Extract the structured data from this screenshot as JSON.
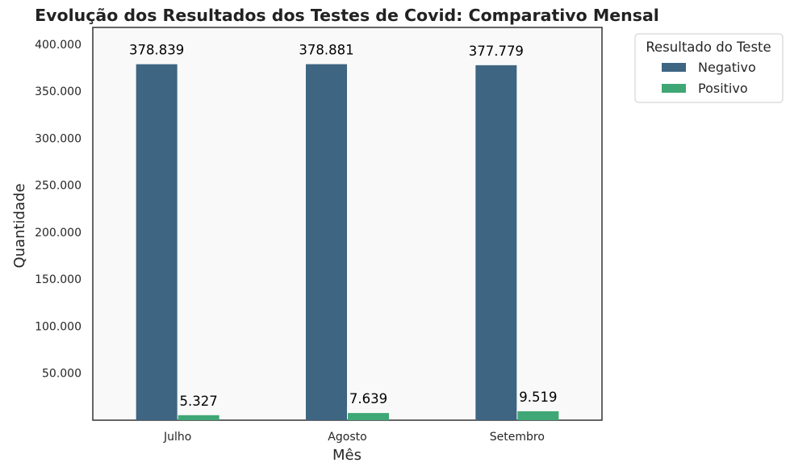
{
  "chart_data": {
    "type": "bar",
    "title": "Evolução dos Resultados dos Testes de Covid: Comparativo Mensal",
    "xlabel": "Mês",
    "ylabel": "Quantidade",
    "categories": [
      "Julho",
      "Agosto",
      "Setembro"
    ],
    "series": [
      {
        "name": "Negativo",
        "values": [
          378839,
          378881,
          377779
        ],
        "labels": [
          "378.839",
          "378.881",
          "377.779"
        ],
        "color": "#3e6582"
      },
      {
        "name": "Positivo",
        "values": [
          5327,
          7639,
          9519
        ],
        "labels": [
          "5.327",
          "7.639",
          "9.519"
        ],
        "color": "#3fa775"
      }
    ],
    "ylim": [
      0,
      418000
    ],
    "yticks": [
      50000,
      100000,
      150000,
      200000,
      250000,
      300000,
      350000,
      400000
    ],
    "ytick_labels": [
      "50.000",
      "100.000",
      "150.000",
      "200.000",
      "250.000",
      "300.000",
      "350.000",
      "400.000"
    ],
    "legend": {
      "title": "Resultado do Teste",
      "placement": "outside-top-right"
    },
    "grid": false,
    "plot_background": "#f9f9f9"
  }
}
